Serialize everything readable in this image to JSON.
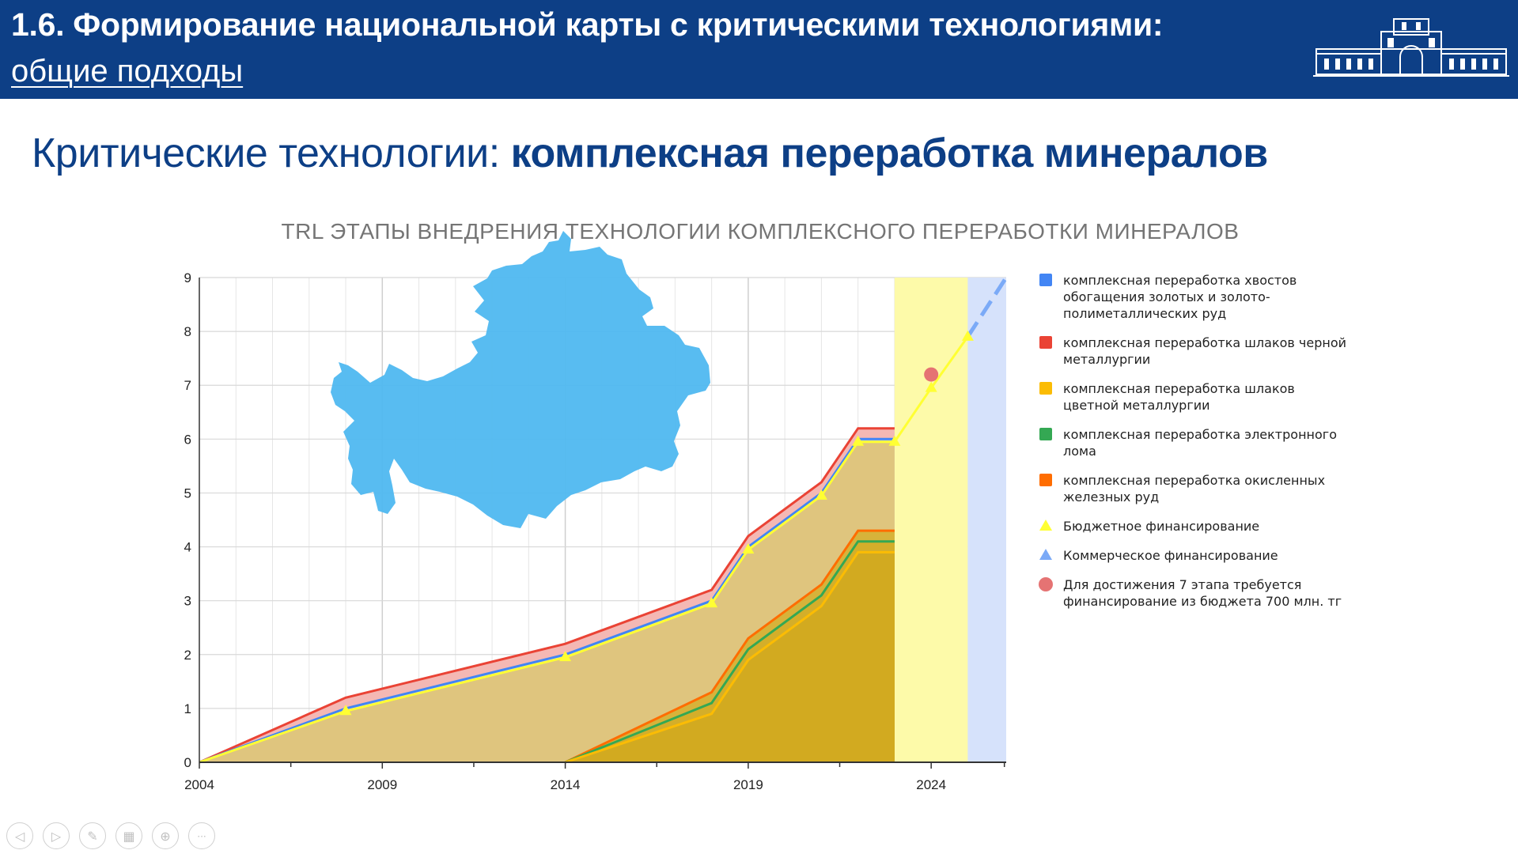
{
  "header": {
    "title_line1": "1.6. Формирование национальной карты с критическими технологиями:",
    "title_line2": "общие подходы",
    "logo_icon": "building-logo-icon",
    "background_color": "#0d3f86"
  },
  "subtitle": {
    "plain": "Критические технологии: ",
    "bold": "комплексная переработка минералов"
  },
  "map_icon": "kazakhstan-map-icon",
  "chart_data": {
    "type": "area",
    "title": "TRL ЭТАПЫ ВНЕДРЕНИЯ ТЕХНОЛОГИИ КОМПЛЕКСНОГО ПЕРЕРАБОТКИ МИНЕРАЛОВ",
    "xlabel": "",
    "ylabel": "",
    "xlim": [
      2004,
      2026.05
    ],
    "ylim": [
      0,
      9
    ],
    "x_ticks": [
      2004,
      2009,
      2014,
      2019,
      2024
    ],
    "y_ticks": [
      0,
      1,
      2,
      3,
      4,
      5,
      6,
      7,
      8,
      9
    ],
    "grid": true,
    "legend_position": "right",
    "series": [
      {
        "name": "комплексная переработка хвостов обогащения золотых и золото-полиметаллических руд",
        "color": "#4285f4",
        "x": [
          2004,
          2008,
          2014,
          2018,
          2019,
          2021,
          2022,
          2023
        ],
        "values": [
          0,
          1.0,
          2.0,
          3.0,
          4.0,
          5.0,
          6.0,
          6.0
        ]
      },
      {
        "name": "комплексная переработка шлаков черной металлургии",
        "color": "#ea4335",
        "x": [
          2004,
          2008,
          2014,
          2018,
          2019,
          2021,
          2022,
          2023
        ],
        "values": [
          0,
          1.2,
          2.2,
          3.2,
          4.2,
          5.2,
          6.2,
          6.2
        ]
      },
      {
        "name": "комплексная переработка шлаков цветной металлургии",
        "color": "#fbbc04",
        "x": [
          2014,
          2018,
          2019,
          2021,
          2022,
          2023
        ],
        "values": [
          0,
          0.9,
          1.9,
          2.9,
          3.9,
          3.9
        ]
      },
      {
        "name": "комплексная переработка электронного лома",
        "color": "#34a853",
        "x": [
          2014,
          2018,
          2019,
          2021,
          2022,
          2023
        ],
        "values": [
          0,
          1.1,
          2.1,
          3.1,
          4.1,
          4.1
        ]
      },
      {
        "name": "комплексная переработка окисленных железных руд",
        "color": "#ff6d01",
        "x": [
          2014,
          2018,
          2019,
          2021,
          2022,
          2023
        ],
        "values": [
          0,
          1.3,
          2.3,
          3.3,
          4.3,
          4.3
        ]
      },
      {
        "name": "Бюджетное финансирование",
        "color": "#ffff33",
        "marker": "triangle",
        "x": [
          2004,
          2008,
          2014,
          2018,
          2019,
          2021,
          2022,
          2023,
          2024,
          2025
        ],
        "values": [
          0,
          0.95,
          1.95,
          2.95,
          3.95,
          4.95,
          5.95,
          5.95,
          6.95,
          7.9
        ]
      },
      {
        "name": "Коммерческое финансирование",
        "color": "#7baaf7",
        "marker": "triangle",
        "dashed": true,
        "x": [
          2025,
          2026.05
        ],
        "values": [
          7.9,
          9.0
        ]
      },
      {
        "name": "Для достижения 7 этапа требуется финансирование из бюджета 700 млн. тг",
        "color": "#e57373",
        "marker": "circle",
        "x": [
          2024
        ],
        "values": [
          7.2
        ]
      }
    ],
    "shaded_regions": [
      {
        "from": 2023,
        "to": 2025,
        "color": "#fdfaa9"
      },
      {
        "from": 2025,
        "to": 2026.05,
        "color": "#d6e2fb"
      }
    ],
    "legend_items": [
      "комплексная переработка хвостов обогащения золотых и золото-полиметаллических руд",
      "комплексная переработка шлаков черной металлургии",
      "комплексная переработка шлаков цветной металлургии",
      "комплексная переработка электронного лома",
      "комплексная переработка окисленных железных руд",
      "Бюджетное финансирование",
      "Коммерческое финансирование",
      "Для достижения 7 этапа требуется финансирование из бюджета 700 млн. тг"
    ]
  },
  "controls": [
    {
      "name": "prev-slide-icon",
      "glyph": "◁"
    },
    {
      "name": "next-slide-icon",
      "glyph": "▷"
    },
    {
      "name": "pen-icon",
      "glyph": "✎"
    },
    {
      "name": "slides-grid-icon",
      "glyph": "▦"
    },
    {
      "name": "zoom-icon",
      "glyph": "⊕"
    },
    {
      "name": "more-icon",
      "glyph": "···"
    }
  ]
}
